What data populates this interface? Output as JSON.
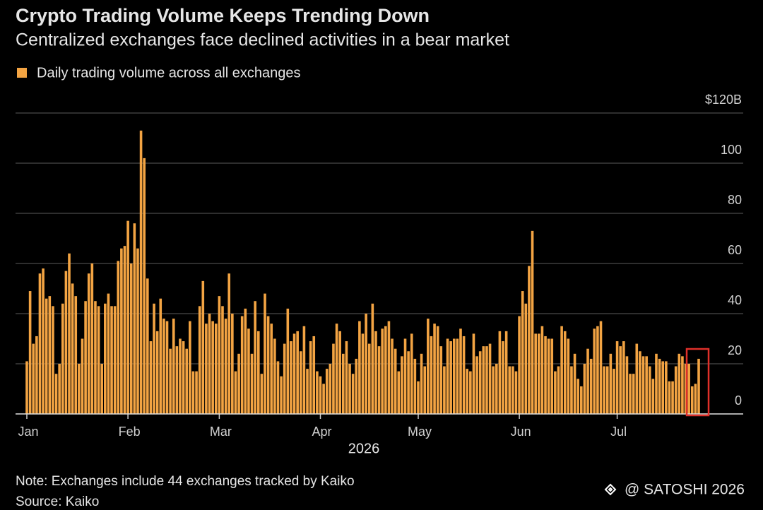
{
  "chart_data": {
    "type": "bar",
    "title": "Crypto Trading Volume Keeps Trending Down",
    "subtitle": "Centralized exchanges face declined activities in a bear market",
    "x_label": "2026",
    "note": "Note: Exchanges include 44 exchanges tracked by Kaiko",
    "source": "Source: Kaiko",
    "watermark": "@ SATOSHI 2026",
    "categories": [
      "Jan",
      null,
      null,
      null,
      null,
      null,
      null,
      null,
      null,
      null,
      null,
      null,
      null,
      null,
      null,
      null,
      null,
      null,
      null,
      null,
      null,
      null,
      null,
      null,
      null,
      null,
      null,
      null,
      null,
      null,
      null,
      "Feb",
      null,
      null,
      null,
      null,
      null,
      null,
      null,
      null,
      null,
      null,
      null,
      null,
      null,
      null,
      null,
      null,
      null,
      null,
      null,
      null,
      null,
      null,
      null,
      null,
      null,
      null,
      null,
      "Mar",
      null,
      null,
      null,
      null,
      null,
      null,
      null,
      null,
      null,
      null,
      null,
      null,
      null,
      null,
      null,
      null,
      null,
      null,
      null,
      null,
      null,
      null,
      null,
      null,
      null,
      null,
      null,
      null,
      null,
      null,
      "Apr",
      null,
      null,
      null,
      null,
      null,
      null,
      null,
      null,
      null,
      null,
      null,
      null,
      null,
      null,
      null,
      null,
      null,
      null,
      null,
      null,
      null,
      null,
      null,
      null,
      null,
      null,
      null,
      null,
      null,
      "May",
      null,
      null,
      null,
      null,
      null,
      null,
      null,
      null,
      null,
      null,
      null,
      null,
      null,
      null,
      null,
      null,
      null,
      null,
      null,
      null,
      null,
      null,
      null,
      null,
      null,
      null,
      null,
      null,
      null,
      null,
      "Jun",
      null,
      null,
      null,
      null,
      null,
      null,
      null,
      null,
      null,
      null,
      null,
      null,
      null,
      null,
      null,
      null,
      null,
      null,
      null,
      null,
      null,
      null,
      null,
      null,
      null,
      null,
      null,
      null,
      null,
      "Jul",
      null,
      null,
      null,
      null,
      null,
      null,
      null,
      null,
      null,
      null,
      null,
      null,
      null,
      null,
      null,
      null,
      null,
      null,
      null,
      null,
      null,
      null,
      null,
      null,
      null
    ],
    "series": [
      {
        "name": "Daily trading volume across all exchanges",
        "color": "#f3a443",
        "values": [
          21,
          49,
          28,
          31,
          56,
          58,
          46,
          47,
          43,
          16,
          20,
          44,
          57,
          64,
          52,
          47,
          20,
          30,
          45,
          56,
          60,
          45,
          43,
          20,
          44,
          48,
          43,
          43,
          61,
          66,
          67,
          77,
          60,
          76,
          66,
          113,
          102,
          54,
          29,
          44,
          33,
          46,
          38,
          37,
          26,
          38,
          27,
          30,
          29,
          26,
          37,
          17,
          17,
          43,
          53,
          36,
          40,
          37,
          36,
          47,
          43,
          38,
          56,
          40,
          17,
          24,
          39,
          42,
          34,
          24,
          45,
          33,
          16,
          48,
          39,
          36,
          30,
          21,
          15,
          28,
          42,
          29,
          32,
          33,
          25,
          35,
          18,
          29,
          31,
          17,
          15,
          12,
          18,
          20,
          28,
          36,
          33,
          24,
          29,
          20,
          16,
          22,
          37,
          32,
          40,
          28,
          44,
          33,
          27,
          34,
          35,
          37,
          30,
          26,
          17,
          23,
          30,
          25,
          32,
          22,
          13,
          24,
          19,
          38,
          31,
          36,
          35,
          27,
          19,
          30,
          29,
          30,
          30,
          34,
          31,
          18,
          17,
          32,
          23,
          25,
          27,
          27,
          28,
          19,
          20,
          33,
          29,
          33,
          19,
          19,
          17,
          39,
          49,
          44,
          59,
          73,
          32,
          32,
          35,
          31,
          30,
          30,
          17,
          19,
          35,
          33,
          30,
          19,
          24,
          14,
          11,
          20,
          26,
          22,
          34,
          35,
          37,
          19,
          19,
          24,
          18,
          29,
          27,
          29,
          23,
          16,
          16,
          28,
          25,
          23,
          23,
          19,
          14,
          24,
          22,
          21,
          21,
          13,
          13,
          19,
          24,
          23,
          20,
          20,
          11,
          12,
          22
        ]
      }
    ],
    "ylim": [
      0,
      120
    ],
    "yticks": [
      0,
      20,
      40,
      60,
      80,
      100,
      {
        "value": 120,
        "label": "$120B"
      }
    ],
    "grid": true
  }
}
